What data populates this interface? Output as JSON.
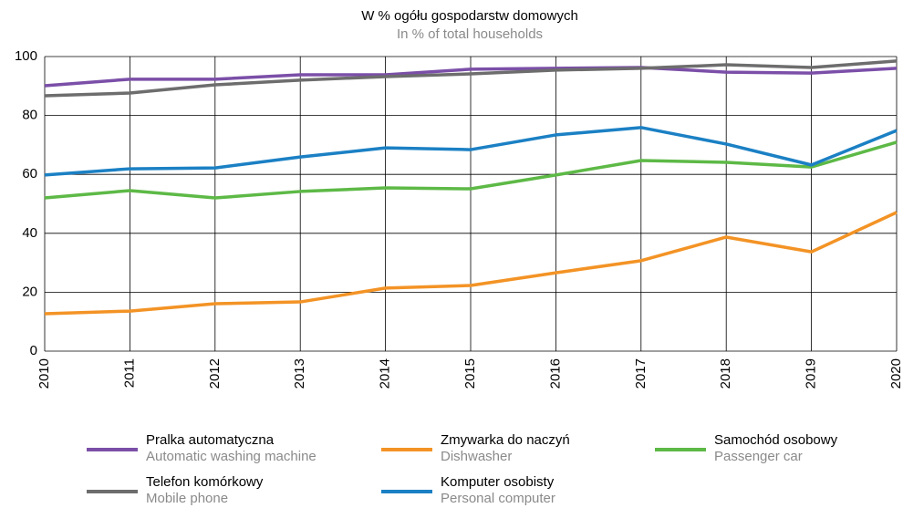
{
  "chart_data": {
    "type": "line",
    "title": "W % ogółu gospodarstw domowych",
    "subtitle": "In % of total households",
    "x": [
      2010,
      2011,
      2012,
      2013,
      2014,
      2015,
      2016,
      2017,
      2018,
      2019,
      2020
    ],
    "xlim": [
      2010,
      2020
    ],
    "xticks": [
      2010,
      2011,
      2012,
      2013,
      2014,
      2015,
      2016,
      2017,
      2018,
      2019,
      2020
    ],
    "ylim": [
      0,
      100
    ],
    "yticks": [
      0,
      20,
      40,
      60,
      80,
      100
    ],
    "grid": true,
    "legend": "bottom",
    "series": [
      {
        "name": "Pralka automatyczna",
        "name_en": "Automatic washing machine",
        "color": "#7b4fa8",
        "values": [
          90.1,
          92.3,
          92.3,
          93.8,
          93.8,
          95.7,
          96.0,
          96.3,
          94.7,
          94.4,
          96.0
        ]
      },
      {
        "name": "Zmywarka do naczyń",
        "name_en": "Dishwasher",
        "color": "#f39325",
        "values": [
          12.7,
          13.6,
          16.1,
          16.7,
          21.4,
          22.3,
          26.6,
          30.7,
          38.7,
          33.7,
          47.1
        ]
      },
      {
        "name": "Samochód osobowy",
        "name_en": "Passenger car",
        "color": "#5db946",
        "values": [
          52.0,
          54.5,
          52.0,
          54.2,
          55.4,
          55.1,
          59.8,
          64.7,
          64.1,
          62.5,
          70.9
        ]
      },
      {
        "name": "Telefon komórkowy",
        "name_en": "Mobile phone",
        "color": "#6d6d6d",
        "values": [
          86.7,
          87.6,
          90.4,
          92.0,
          93.2,
          94.1,
          95.4,
          96.0,
          97.2,
          96.3,
          98.5
        ]
      },
      {
        "name": "Komputer osobisty",
        "name_en": "Personal computer",
        "color": "#1b80c4",
        "values": [
          59.8,
          61.9,
          62.2,
          65.9,
          69.0,
          68.4,
          73.4,
          75.9,
          70.3,
          63.2,
          74.9
        ]
      }
    ]
  }
}
